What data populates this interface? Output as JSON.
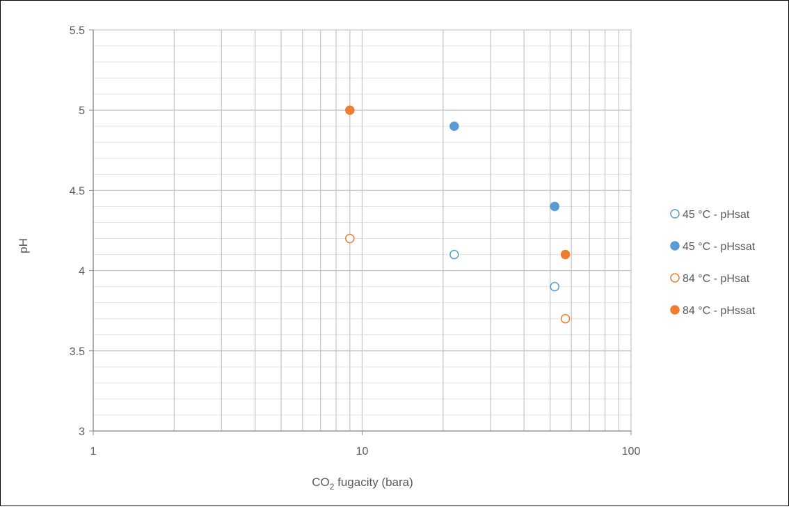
{
  "chart_data": {
    "type": "scatter",
    "title": "",
    "xlabel": {
      "main": "CO",
      "sub": "2",
      "rest": " fugacity (bara)"
    },
    "ylabel": "pH",
    "x_scale": "log",
    "xlim": [
      1,
      100
    ],
    "ylim": [
      3,
      5.5
    ],
    "x_ticks": [
      "1",
      "10",
      "100"
    ],
    "y_ticks": [
      "3",
      "3.5",
      "4",
      "4.5",
      "5",
      "5.5"
    ],
    "grid": true,
    "legend_position": "right",
    "series": [
      {
        "name": "45 °C - pHsat",
        "color": "#5B9BD5",
        "filled": false,
        "points": [
          [
            22,
            4.1
          ],
          [
            52,
            3.9
          ]
        ]
      },
      {
        "name": "45 °C - pHssat",
        "color": "#5B9BD5",
        "filled": true,
        "points": [
          [
            22,
            4.9
          ],
          [
            52,
            4.4
          ]
        ]
      },
      {
        "name": "84 °C - pHsat",
        "color": "#ED7D31",
        "filled": false,
        "points": [
          [
            9,
            4.2
          ],
          [
            57,
            3.7
          ]
        ]
      },
      {
        "name": "84 °C - pHssat",
        "color": "#ED7D31",
        "filled": true,
        "points": [
          [
            9,
            5.0
          ],
          [
            57,
            4.1
          ]
        ]
      }
    ]
  }
}
